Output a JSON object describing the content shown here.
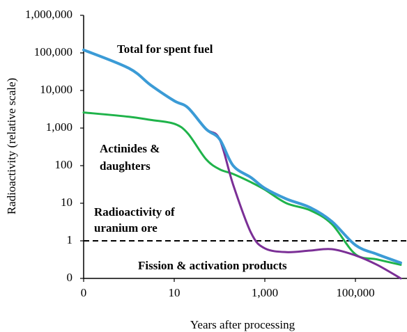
{
  "chart_data": {
    "type": "line",
    "x_label": "Years after processing",
    "y_label": "Radioactivity (relative scale)",
    "xscale": "log",
    "yscale": "log",
    "x": [
      0,
      1,
      3,
      10,
      20,
      50,
      100,
      200,
      500,
      1000,
      3000,
      10000,
      30000,
      100000,
      300000,
      1000000
    ],
    "xlim": [
      0,
      1000000
    ],
    "xticks": [
      0,
      10,
      {
        "value": 1000,
        "label": "1,000"
      },
      {
        "value": 100000,
        "label": "100,000"
      }
    ],
    "ylim": [
      0,
      1000000
    ],
    "yticks": [
      0,
      1,
      10,
      100,
      {
        "value": 1000,
        "label": "1,000"
      },
      {
        "value": 10000,
        "label": "10,000"
      },
      {
        "value": 100000,
        "label": "100,000"
      },
      {
        "value": 1000000,
        "label": "1,000,000"
      }
    ],
    "series": [
      {
        "color": "#1fb34a",
        "values": [
          2600,
          2000,
          1650,
          1300,
          720,
          150,
          80,
          60,
          36,
          23,
          10,
          6.5,
          2.8,
          0.44,
          0.32,
          0.23
        ]
      },
      {
        "color": "#7b2f96",
        "values": [
          120000,
          39000,
          14000,
          5300,
          3500,
          950,
          510,
          31,
          1.6,
          0.63,
          0.5,
          0.55,
          0.6,
          0.41,
          0.23,
          0
        ]
      },
      {
        "color": "#3b9bd6",
        "values": [
          120000,
          39000,
          14000,
          5300,
          3500,
          950,
          510,
          100,
          48,
          25,
          13,
          7.7,
          3.3,
          0.77,
          0.44,
          0.26
        ]
      }
    ],
    "reference_line": {
      "value": 1,
      "color": "#000000",
      "style": "dashed"
    },
    "annotations": [
      {
        "text": "Total for spent fuel",
        "color": "#3b9bd6"
      },
      {
        "text": "Actinides &",
        "color": "#1fb34a"
      },
      {
        "text": "daughters",
        "color": "#1fb34a"
      },
      {
        "text": "Radioactivity of",
        "color": "#1a1a1a"
      },
      {
        "text": "uranium ore",
        "color": "#1a1a1a"
      },
      {
        "text": "Fission & activation products",
        "color": "#7b2f96"
      }
    ]
  }
}
